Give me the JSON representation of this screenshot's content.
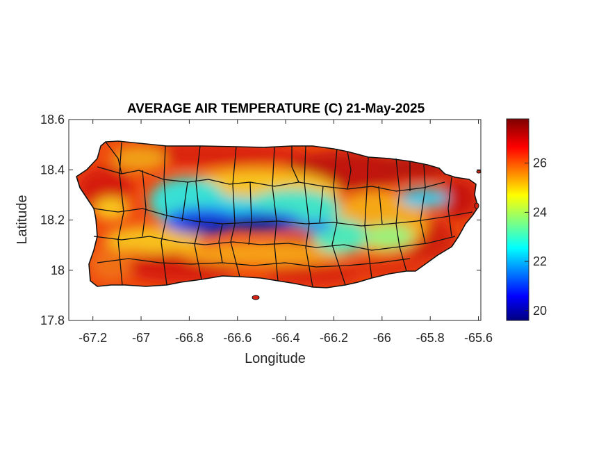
{
  "title": "AVERAGE AIR TEMPERATURE (C) 21-May-2025",
  "xlabel": "Longitude",
  "ylabel": "Latitude",
  "x_ticks": [
    "-67.2",
    "-67",
    "-66.8",
    "-66.6",
    "-66.4",
    "-66.2",
    "-66",
    "-65.8",
    "-65.6"
  ],
  "x_tick_values": [
    -67.2,
    -67,
    -66.8,
    -66.6,
    -66.4,
    -66.2,
    -66,
    -65.8,
    -65.6
  ],
  "y_ticks": [
    "18.6",
    "18.4",
    "18.2",
    "18"
  ],
  "y_ticks_extra": "17.8",
  "y_tick_values": [
    18.6,
    18.4,
    18.2,
    18.0,
    17.8
  ],
  "xlim": [
    -67.3,
    -65.59
  ],
  "ylim": [
    17.8,
    18.6
  ],
  "colorbar": {
    "colormap": "jet",
    "range": [
      19.6,
      27.8
    ],
    "ticks": [
      "20",
      "22",
      "24",
      "26"
    ],
    "tick_values": [
      20,
      22,
      24,
      26
    ]
  },
  "colors": {
    "hot": "#d81f0a",
    "warm": "#f26b12",
    "mild": "#f9d31b",
    "cool": "#36e0d6",
    "cold": "#1434e8",
    "coldest": "#05066e",
    "border": "#111111"
  },
  "chart_data": {
    "type": "heatmap",
    "title": "AVERAGE AIR TEMPERATURE (C) 21-May-2025",
    "xlabel": "Longitude",
    "ylabel": "Latitude",
    "xlim": [
      -67.3,
      -65.59
    ],
    "ylim": [
      17.8,
      18.6
    ],
    "value_range": [
      19.6,
      27.8
    ],
    "regions": [
      {
        "name": "",
        "lon": -66.75,
        "lat": 18.18,
        "value": 19.8
      },
      {
        "name": "",
        "lon": -66.55,
        "lat": 18.17,
        "value": 19.9
      },
      {
        "name": "",
        "lon": -66.85,
        "lat": 18.25,
        "value": 22.5
      },
      {
        "name": "",
        "lon": -66.6,
        "lat": 18.25,
        "value": 23.0
      },
      {
        "name": "",
        "lon": -66.3,
        "lat": 18.18,
        "value": 22.3
      },
      {
        "name": "",
        "lon": -66.2,
        "lat": 18.1,
        "value": 23.5
      },
      {
        "name": "",
        "lon": -65.85,
        "lat": 18.29,
        "value": 22.5
      },
      {
        "name": "",
        "lon": -66.0,
        "lat": 18.12,
        "value": 24.2
      },
      {
        "name": "",
        "lon": -67.1,
        "lat": 18.2,
        "value": 26.0
      },
      {
        "name": "",
        "lon": -66.3,
        "lat": 18.41,
        "value": 27.3
      },
      {
        "name": "",
        "lon": -66.0,
        "lat": 18.42,
        "value": 27.6
      },
      {
        "name": "",
        "lon": -65.7,
        "lat": 18.28,
        "value": 27.0
      },
      {
        "name": "",
        "lon": -66.7,
        "lat": 18.02,
        "value": 27.0
      },
      {
        "name": "",
        "lon": -67.15,
        "lat": 18.45,
        "value": 26.8
      }
    ]
  }
}
